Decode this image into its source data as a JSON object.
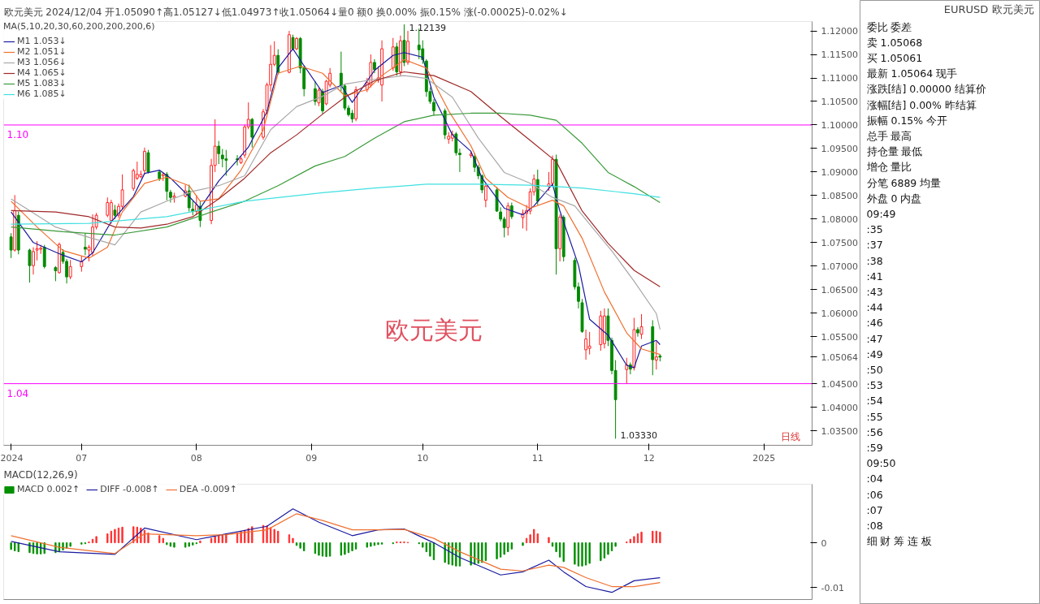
{
  "chart_data": [
    {
      "type": "candlestick",
      "title": "欧元美元 2024/12/04 开1.05090↑高1.05127↓低1.04973↑收1.05064↓量0 额0 换0.00% 振0.15% 涨(-0.00025)-0.02%↓",
      "subtitle": "MA(5,10,20,30,60,200,200,200,6)",
      "x": [
        "2024-06-12",
        "2024-06-13",
        "2024-06-14",
        "2024-06-17",
        "2024-06-18",
        "2024-06-19",
        "2024-06-20",
        "2024-06-21",
        "2024-06-24",
        "2024-06-25",
        "2024-06-26",
        "2024-06-27",
        "2024-06-28",
        "2024-07-01",
        "2024-07-02",
        "2024-07-03",
        "2024-07-04",
        "2024-07-05",
        "2024-07-08",
        "2024-07-09",
        "2024-07-10",
        "2024-07-11",
        "2024-07-12",
        "2024-07-15",
        "2024-07-16",
        "2024-07-17",
        "2024-07-18",
        "2024-07-19",
        "2024-07-22",
        "2024-07-23",
        "2024-07-24",
        "2024-07-25",
        "2024-07-26",
        "2024-07-29",
        "2024-07-30",
        "2024-07-31",
        "2024-08-01",
        "2024-08-02",
        "2024-08-05",
        "2024-08-06",
        "2024-08-07",
        "2024-08-08",
        "2024-08-09",
        "2024-08-12",
        "2024-08-13",
        "2024-08-14",
        "2024-08-15",
        "2024-08-16",
        "2024-08-19",
        "2024-08-20",
        "2024-08-21",
        "2024-08-22",
        "2024-08-23",
        "2024-08-26",
        "2024-08-27",
        "2024-08-28",
        "2024-08-29",
        "2024-08-30",
        "2024-09-02",
        "2024-09-03",
        "2024-09-04",
        "2024-09-05",
        "2024-09-06",
        "2024-09-09",
        "2024-09-10",
        "2024-09-11",
        "2024-09-12",
        "2024-09-13",
        "2024-09-16",
        "2024-09-17",
        "2024-09-18",
        "2024-09-19",
        "2024-09-20",
        "2024-09-23",
        "2024-09-24",
        "2024-09-25",
        "2024-09-26",
        "2024-09-27",
        "2024-09-30",
        "2024-10-01",
        "2024-10-02",
        "2024-10-03",
        "2024-10-04",
        "2024-10-07",
        "2024-10-08",
        "2024-10-09",
        "2024-10-10",
        "2024-10-11",
        "2024-10-14",
        "2024-10-15",
        "2024-10-16",
        "2024-10-17",
        "2024-10-18",
        "2024-10-21",
        "2024-10-22",
        "2024-10-23",
        "2024-10-24",
        "2024-10-25",
        "2024-10-28",
        "2024-10-29",
        "2024-10-30",
        "2024-10-31",
        "2024-11-01",
        "2024-11-04",
        "2024-11-05",
        "2024-11-06",
        "2024-11-07",
        "2024-11-08",
        "2024-11-11",
        "2024-11-12",
        "2024-11-13",
        "2024-11-14",
        "2024-11-15",
        "2024-11-18",
        "2024-11-19",
        "2024-11-20",
        "2024-11-21",
        "2024-11-22",
        "2024-11-25",
        "2024-11-26",
        "2024-11-27",
        "2024-11-28",
        "2024-11-29",
        "2024-12-02",
        "2024-12-03",
        "2024-12-04"
      ],
      "ohlc": [
        [
          1.0762,
          1.077,
          1.0717,
          1.0734
        ],
        [
          1.0734,
          1.0851,
          1.0731,
          1.0818
        ],
        [
          1.0808,
          1.0816,
          1.0725,
          1.0734
        ],
        [
          1.0734,
          1.0737,
          1.0665,
          1.0701
        ],
        [
          1.0701,
          1.074,
          1.0682,
          1.0731
        ],
        [
          1.0734,
          1.0753,
          1.0712,
          1.0737
        ],
        [
          1.0736,
          1.0745,
          1.0726,
          1.0738
        ],
        [
          1.074,
          1.0745,
          1.0695,
          1.0699
        ],
        [
          1.0697,
          1.07,
          1.0668,
          1.069
        ],
        [
          1.0686,
          1.075,
          1.0684,
          1.0746
        ],
        [
          1.0729,
          1.0736,
          1.0705,
          1.071
        ],
        [
          1.071,
          1.0715,
          1.0663,
          1.0677
        ],
        [
          1.0677,
          1.0713,
          1.0672,
          1.0699
        ],
        [
          1.0699,
          1.0721,
          1.0688,
          1.071
        ],
        [
          1.074,
          1.077,
          1.0723,
          1.0736
        ],
        [
          1.0734,
          1.0745,
          1.071,
          1.074
        ],
        [
          1.0729,
          1.081,
          1.0721,
          1.0783
        ],
        [
          1.0783,
          1.0813,
          1.0778,
          1.0808
        ],
        [
          1.0808,
          1.0846,
          1.0804,
          1.0835
        ],
        [
          1.0797,
          1.0841,
          1.079,
          1.0835
        ],
        [
          1.0819,
          1.083,
          1.08,
          1.0808
        ],
        [
          1.0808,
          1.0833,
          1.0803,
          1.0827
        ],
        [
          1.0827,
          1.0895,
          1.082,
          1.0862
        ],
        [
          1.0865,
          1.0907,
          1.086,
          1.0903
        ],
        [
          1.0887,
          1.0922,
          1.0883,
          1.0895
        ],
        [
          1.089,
          1.0903,
          1.0887,
          1.0895
        ],
        [
          1.0903,
          1.0952,
          1.0895,
          1.0944
        ],
        [
          1.0941,
          1.0947,
          1.0897,
          1.09
        ],
        [
          1.09,
          1.0905,
          1.0881,
          1.0886
        ],
        [
          1.0892,
          1.09,
          1.0881,
          1.0895
        ],
        [
          1.0895,
          1.09,
          1.084,
          1.0859
        ],
        [
          1.0857,
          1.0862,
          1.0835,
          1.0846
        ],
        [
          1.0846,
          1.0856,
          1.0835,
          1.0849
        ],
        [
          1.0849,
          1.0873,
          1.0846,
          1.086
        ],
        [
          1.086,
          1.0873,
          1.0816,
          1.0824
        ],
        [
          1.0821,
          1.0838,
          1.0808,
          1.0816
        ],
        [
          1.0816,
          1.0851,
          1.0808,
          1.083
        ],
        [
          1.0827,
          1.0838,
          1.0783,
          1.0797
        ],
        [
          1.0797,
          1.0928,
          1.0789,
          1.0914
        ],
        [
          1.0914,
          1.1012,
          1.09,
          1.0955
        ],
        [
          1.0955,
          1.0966,
          1.0917,
          1.0939
        ],
        [
          1.0936,
          1.0949,
          1.091,
          1.0928
        ],
        [
          1.0928,
          1.0947,
          1.0892,
          1.0925
        ],
        [
          1.0928,
          1.0936,
          1.0914,
          1.0926
        ],
        [
          1.092,
          1.0934,
          1.0917,
          1.0928
        ],
        [
          1.0936,
          1.1001,
          1.093,
          1.0996
        ],
        [
          1.0996,
          1.1048,
          1.0991,
          1.1012
        ],
        [
          1.1012,
          1.1015,
          1.0952,
          1.0974
        ],
        [
          1.0974,
          1.1034,
          1.0969,
          1.1028
        ],
        [
          1.103,
          1.109,
          1.1023,
          1.1085
        ],
        [
          1.1085,
          1.117,
          1.1071,
          1.1129
        ],
        [
          1.1129,
          1.1178,
          1.1125,
          1.1148
        ],
        [
          1.1148,
          1.1161,
          1.1107,
          1.1112
        ],
        [
          1.1112,
          1.12,
          1.111,
          1.1192
        ],
        [
          1.1186,
          1.1192,
          1.1159,
          1.1162
        ],
        [
          1.1162,
          1.1187,
          1.1159,
          1.1184
        ],
        [
          1.1184,
          1.1187,
          1.111,
          1.1121
        ],
        [
          1.1121,
          1.1125,
          1.1061,
          1.1077
        ],
        [
          1.1077,
          1.1093,
          1.1042,
          1.105
        ],
        [
          1.1047,
          1.108,
          1.104,
          1.1074
        ],
        [
          1.1071,
          1.1077,
          1.1023,
          1.103
        ],
        [
          1.1045,
          1.1096,
          1.1042,
          1.1093
        ],
        [
          1.1085,
          1.1121,
          1.108,
          1.111
        ],
        [
          1.111,
          1.1156,
          1.1072,
          1.1083
        ],
        [
          1.1083,
          1.1088,
          1.1031,
          1.1036
        ],
        [
          1.1036,
          1.1042,
          1.1018,
          1.1022
        ],
        [
          1.1025,
          1.1032,
          1.1005,
          1.1013
        ],
        [
          1.1013,
          1.1082,
          1.1008,
          1.1075
        ],
        [
          1.1075,
          1.11,
          1.107,
          1.109
        ],
        [
          1.1085,
          1.115,
          1.108,
          1.1133
        ],
        [
          1.1133,
          1.114,
          1.111,
          1.1118
        ],
        [
          1.1095,
          1.1125,
          1.109,
          1.11
        ],
        [
          1.1085,
          1.118,
          1.105,
          1.1162
        ],
        [
          1.1121,
          1.1185,
          1.1115,
          1.1166
        ],
        [
          1.1166,
          1.1175,
          1.1105,
          1.1113
        ],
        [
          1.1113,
          1.119,
          1.1105,
          1.1179
        ],
        [
          1.118,
          1.12139,
          1.1125,
          1.1133
        ],
        [
          1.1133,
          1.12,
          1.1128,
          1.1178
        ],
        [
          1.117,
          1.1205,
          1.114,
          1.116
        ],
        [
          1.1162,
          1.118,
          1.113,
          1.1139
        ],
        [
          1.1136,
          1.114,
          1.106,
          1.1071
        ],
        [
          1.1071,
          1.108,
          1.1045,
          1.105
        ],
        [
          1.1048,
          1.1055,
          1.102,
          1.103
        ],
        [
          1.103,
          1.1035,
          1.097,
          1.0979
        ],
        [
          1.097,
          1.0985,
          1.096,
          1.0976
        ],
        [
          1.0972,
          1.0988,
          1.0965,
          1.098
        ],
        [
          1.0981,
          1.0985,
          1.0935,
          1.0941
        ],
        [
          1.094,
          1.095,
          1.09,
          1.0937
        ],
        [
          1.0935,
          1.0945,
          1.093,
          1.0938
        ],
        [
          1.0933,
          1.094,
          1.09,
          1.091
        ],
        [
          1.091,
          1.0915,
          1.0885,
          1.0892
        ],
        [
          1.0892,
          1.0895,
          1.0855,
          1.0862
        ],
        [
          1.084,
          1.0875,
          1.0825,
          1.087
        ],
        [
          1.0862,
          1.0868,
          1.0815,
          1.0817
        ],
        [
          1.0815,
          1.0825,
          1.0795,
          1.08
        ],
        [
          1.08,
          1.0805,
          1.0761,
          1.0782
        ],
        [
          1.0782,
          1.0835,
          1.0765,
          1.0828
        ],
        [
          1.0828,
          1.0835,
          1.08,
          1.0805
        ],
        [
          1.0803,
          1.082,
          1.078,
          1.0812
        ],
        [
          1.0812,
          1.083,
          1.0775,
          1.0818
        ],
        [
          1.0817,
          1.0865,
          1.081,
          1.0858
        ],
        [
          1.0858,
          1.0895,
          1.085,
          1.0885
        ],
        [
          1.0884,
          1.0905,
          1.083,
          1.0838
        ],
        [
          1.087,
          1.09,
          1.086,
          1.0875
        ],
        [
          1.0876,
          1.0935,
          1.087,
          1.0927
        ],
        [
          1.0927,
          1.0937,
          1.0682,
          1.0737
        ],
        [
          1.0737,
          1.081,
          1.071,
          1.0804
        ],
        [
          1.0804,
          1.0808,
          1.071,
          1.072
        ],
        [
          1.0712,
          1.0718,
          1.065,
          1.0656
        ],
        [
          1.0656,
          1.0665,
          1.061,
          1.0625
        ],
        [
          1.0622,
          1.063,
          1.0558,
          1.0561
        ],
        [
          1.0522,
          1.0565,
          1.0501,
          1.0545
        ],
        [
          1.0525,
          1.056,
          1.0512,
          1.053
        ],
        [
          1.0533,
          1.0605,
          1.052,
          1.0594
        ],
        [
          1.0535,
          1.061,
          1.0525,
          1.0594
        ],
        [
          1.0594,
          1.061,
          1.053,
          1.0542
        ],
        [
          1.0542,
          1.0548,
          1.047,
          1.0478
        ],
        [
          1.0478,
          1.05,
          1.0333,
          1.0416
        ],
        [
          1.048,
          1.0505,
          1.045,
          1.049
        ],
        [
          1.049,
          1.0495,
          1.047,
          1.0481
        ],
        [
          1.0484,
          1.059,
          1.0478,
          1.0565
        ],
        [
          1.0565,
          1.057,
          1.055,
          1.0558
        ],
        [
          1.0555,
          1.0598,
          1.0545,
          1.0571
        ],
        [
          1.0571,
          1.0585,
          1.0468,
          1.0501
        ],
        [
          1.05,
          1.054,
          1.048,
          1.0507
        ],
        [
          1.0509,
          1.05127,
          1.04973,
          1.05064
        ]
      ],
      "series": [
        {
          "type": "line",
          "name": "M1 1.053↓",
          "color": "#1a1aa0",
          "x": [
            "2024-06-12",
            "2024-06-18",
            "2024-06-26",
            "2024-07-01",
            "2024-07-04",
            "2024-07-09",
            "2024-07-15",
            "2024-07-18",
            "2024-07-22",
            "2024-07-25",
            "2024-07-30",
            "2024-08-02",
            "2024-08-07",
            "2024-08-12",
            "2024-08-15",
            "2024-08-20",
            "2024-08-23",
            "2024-08-27",
            "2024-08-30",
            "2024-09-04",
            "2024-09-09",
            "2024-09-12",
            "2024-09-18",
            "2024-09-23",
            "2024-09-26",
            "2024-10-01",
            "2024-10-04",
            "2024-10-09",
            "2024-10-14",
            "2024-10-17",
            "2024-10-23",
            "2024-10-28",
            "2024-10-31",
            "2024-11-05",
            "2024-11-07",
            "2024-11-12",
            "2024-11-15",
            "2024-11-20",
            "2024-11-25",
            "2024-11-27",
            "2024-11-29",
            "2024-12-03",
            "2024-12-04"
          ],
          "values": [
            1.0815,
            1.075,
            1.0723,
            1.0709,
            1.0728,
            1.0794,
            1.0848,
            1.0897,
            1.0904,
            1.0887,
            1.0848,
            1.0823,
            1.0881,
            1.0925,
            1.0953,
            1.1028,
            1.1121,
            1.1162,
            1.1126,
            1.1069,
            1.1084,
            1.1048,
            1.1116,
            1.1148,
            1.1154,
            1.1144,
            1.1059,
            1.0979,
            1.0944,
            1.0887,
            1.0823,
            1.0809,
            1.0828,
            1.0874,
            1.0817,
            1.0702,
            1.0587,
            1.0553,
            1.0489,
            1.0484,
            1.053,
            1.0542,
            1.0533
          ]
        },
        {
          "type": "line",
          "name": "M2 1.051↓",
          "color": "#f07030",
          "x": [
            "2024-06-12",
            "2024-06-19",
            "2024-06-26",
            "2024-07-03",
            "2024-07-08",
            "2024-07-12",
            "2024-07-18",
            "2024-07-24",
            "2024-07-30",
            "2024-08-02",
            "2024-08-07",
            "2024-08-13",
            "2024-08-19",
            "2024-08-23",
            "2024-08-29",
            "2024-09-04",
            "2024-09-10",
            "2024-09-16",
            "2024-09-20",
            "2024-09-26",
            "2024-10-02",
            "2024-10-08",
            "2024-10-14",
            "2024-10-18",
            "2024-10-24",
            "2024-10-30",
            "2024-11-05",
            "2024-11-08",
            "2024-11-13",
            "2024-11-19",
            "2024-11-25",
            "2024-11-29",
            "2024-12-04"
          ],
          "values": [
            1.0838,
            1.0783,
            1.0733,
            1.0717,
            1.074,
            1.0815,
            1.0876,
            1.0889,
            1.0871,
            1.0838,
            1.0843,
            1.0904,
            1.099,
            1.111,
            1.1125,
            1.111,
            1.1062,
            1.1075,
            1.1105,
            1.1139,
            1.1121,
            1.103,
            1.0956,
            1.0887,
            1.0846,
            1.0823,
            1.084,
            1.0828,
            1.0759,
            1.0645,
            1.0558,
            1.0524,
            1.0512
          ]
        },
        {
          "type": "line",
          "name": "M3 1.056↓",
          "color": "#a8a8a8",
          "x": [
            "2024-06-12",
            "2024-06-24",
            "2024-07-03",
            "2024-07-10",
            "2024-07-17",
            "2024-07-24",
            "2024-07-31",
            "2024-08-07",
            "2024-08-14",
            "2024-08-21",
            "2024-08-28",
            "2024-09-04",
            "2024-09-10",
            "2024-09-18",
            "2024-09-26",
            "2024-10-02",
            "2024-10-09",
            "2024-10-16",
            "2024-10-23",
            "2024-10-30",
            "2024-11-05",
            "2024-11-11",
            "2024-11-15",
            "2024-11-21",
            "2024-11-27",
            "2024-12-03",
            "2024-12-04"
          ],
          "values": [
            1.0843,
            1.0783,
            1.0761,
            1.0745,
            1.0815,
            1.0838,
            1.0859,
            1.0871,
            1.0892,
            1.099,
            1.1039,
            1.1061,
            1.1087,
            1.1097,
            1.1105,
            1.1099,
            1.1059,
            1.0972,
            1.0899,
            1.0876,
            1.0846,
            1.0828,
            1.0789,
            1.0732,
            1.0668,
            1.0599,
            1.0565
          ]
        },
        {
          "type": "line",
          "name": "M4 1.065↓",
          "color": "#a02828",
          "x": [
            "2024-06-12",
            "2024-06-24",
            "2024-07-03",
            "2024-07-10",
            "2024-07-17",
            "2024-07-24",
            "2024-07-31",
            "2024-08-07",
            "2024-08-14",
            "2024-08-21",
            "2024-08-28",
            "2024-09-04",
            "2024-09-10",
            "2024-09-18",
            "2024-09-26",
            "2024-10-04",
            "2024-10-14",
            "2024-10-22",
            "2024-10-30",
            "2024-11-06",
            "2024-11-13",
            "2024-11-20",
            "2024-11-27",
            "2024-12-04"
          ],
          "values": [
            1.0818,
            1.0815,
            1.0805,
            1.0783,
            1.0781,
            1.0789,
            1.0805,
            1.0843,
            1.0887,
            1.0941,
            1.0979,
            1.1023,
            1.1059,
            1.1094,
            1.1113,
            1.1105,
            1.1071,
            1.1018,
            1.0967,
            1.0922,
            1.0817,
            1.0748,
            1.0691,
            1.0656
          ]
        },
        {
          "type": "line",
          "name": "M5 1.083↓",
          "color": "#3a9a3a",
          "x": [
            "2024-06-12",
            "2024-06-26",
            "2024-07-10",
            "2024-07-24",
            "2024-08-05",
            "2024-08-14",
            "2024-08-23",
            "2024-09-02",
            "2024-09-10",
            "2024-09-18",
            "2024-09-26",
            "2024-10-04",
            "2024-10-14",
            "2024-10-22",
            "2024-10-30",
            "2024-11-06",
            "2024-11-13",
            "2024-11-20",
            "2024-11-27",
            "2024-12-04"
          ],
          "values": [
            1.0783,
            1.0773,
            1.0766,
            1.0783,
            1.0815,
            1.0838,
            1.0871,
            1.0913,
            1.0933,
            1.0972,
            1.1007,
            1.1021,
            1.1025,
            1.1025,
            1.1021,
            1.101,
            1.0961,
            1.0899,
            1.0869,
            1.0835
          ]
        },
        {
          "type": "line",
          "name": "M6 1.085↓",
          "color": "#40e0e0",
          "x": [
            "2024-06-12",
            "2024-07-03",
            "2024-07-24",
            "2024-08-14",
            "2024-09-04",
            "2024-09-18",
            "2024-10-02",
            "2024-10-16",
            "2024-10-30",
            "2024-11-13",
            "2024-11-27",
            "2024-12-04"
          ],
          "values": [
            1.0789,
            1.0791,
            1.0805,
            1.0838,
            1.0856,
            1.0866,
            1.0874,
            1.0874,
            1.0872,
            1.0866,
            1.0854,
            1.0846
          ]
        }
      ],
      "xlim": [
        "2024-06-10",
        "2025-01-14"
      ],
      "xticks": [
        {
          "value": "2024-06-12",
          "label": "2024"
        },
        {
          "value": "2024-07-01",
          "label": "07"
        },
        {
          "value": "2024-08-01",
          "label": "08"
        },
        {
          "value": "2024-09-01",
          "label": "09"
        },
        {
          "value": "2024-10-01",
          "label": "10"
        },
        {
          "value": "2024-11-01",
          "label": "11"
        },
        {
          "value": "2024-12-01",
          "label": "12"
        },
        {
          "value": "2025-01-01",
          "label": "2025"
        }
      ],
      "ylim": [
        1.0319,
        1.122
      ],
      "yticks": [
        {
          "value": 1.035,
          "label": "1.03500"
        },
        {
          "value": 1.04,
          "label": "1.04000"
        },
        {
          "value": 1.045,
          "label": "1.04500"
        },
        {
          "value": 1.05064,
          "label": "1.05064"
        },
        {
          "value": 1.055,
          "label": "1.05500"
        },
        {
          "value": 1.06,
          "label": "1.06000"
        },
        {
          "value": 1.065,
          "label": "1.06500"
        },
        {
          "value": 1.07,
          "label": "1.07000"
        },
        {
          "value": 1.075,
          "label": "1.07500"
        },
        {
          "value": 1.08,
          "label": "1.08000"
        },
        {
          "value": 1.085,
          "label": "1.08500"
        },
        {
          "value": 1.09,
          "label": "1.09000"
        },
        {
          "value": 1.095,
          "label": "1.09500"
        },
        {
          "value": 1.1,
          "label": "1.10000"
        },
        {
          "value": 1.105,
          "label": "1.10500"
        },
        {
          "value": 1.11,
          "label": "1.11000"
        },
        {
          "value": 1.115,
          "label": "1.11500"
        },
        {
          "value": 1.12,
          "label": "1.12000"
        }
      ],
      "ref_lines": [
        {
          "axis": "y",
          "value": 1.1,
          "label": "1.10",
          "color": "#ff00ff"
        },
        {
          "axis": "y",
          "value": 1.045,
          "label": "1.04",
          "color": "#ff00ff"
        }
      ],
      "annotations": [
        "欧元美元",
        "日线",
        {
          "text": "1.12139",
          "x": "2024-09-26",
          "y": 1.12139
        },
        {
          "text": "1.03330",
          "x": "2024-11-22",
          "y": 1.0333
        }
      ],
      "legend": "top left",
      "grid": false
    },
    {
      "type": "bar",
      "title": "MACD(12,26,9)",
      "x": [
        "2024-06-12",
        "2024-06-13",
        "2024-06-14",
        "2024-06-17",
        "2024-06-18",
        "2024-06-19",
        "2024-06-20",
        "2024-06-21",
        "2024-06-24",
        "2024-06-25",
        "2024-06-26",
        "2024-06-27",
        "2024-06-28",
        "2024-07-01",
        "2024-07-02",
        "2024-07-03",
        "2024-07-04",
        "2024-07-05",
        "2024-07-08",
        "2024-07-09",
        "2024-07-10",
        "2024-07-11",
        "2024-07-12",
        "2024-07-15",
        "2024-07-16",
        "2024-07-17",
        "2024-07-18",
        "2024-07-19",
        "2024-07-22",
        "2024-07-23",
        "2024-07-24",
        "2024-07-25",
        "2024-07-26",
        "2024-07-29",
        "2024-07-30",
        "2024-07-31",
        "2024-08-01",
        "2024-08-02",
        "2024-08-05",
        "2024-08-06",
        "2024-08-07",
        "2024-08-08",
        "2024-08-09",
        "2024-08-12",
        "2024-08-13",
        "2024-08-14",
        "2024-08-15",
        "2024-08-16",
        "2024-08-19",
        "2024-08-20",
        "2024-08-21",
        "2024-08-22",
        "2024-08-23",
        "2024-08-26",
        "2024-08-27",
        "2024-08-28",
        "2024-08-29",
        "2024-08-30",
        "2024-09-02",
        "2024-09-03",
        "2024-09-04",
        "2024-09-05",
        "2024-09-06",
        "2024-09-09",
        "2024-09-10",
        "2024-09-11",
        "2024-09-12",
        "2024-09-13",
        "2024-09-16",
        "2024-09-17",
        "2024-09-18",
        "2024-09-19",
        "2024-09-20",
        "2024-09-23",
        "2024-09-24",
        "2024-09-25",
        "2024-09-26",
        "2024-09-27",
        "2024-09-30",
        "2024-10-01",
        "2024-10-02",
        "2024-10-03",
        "2024-10-04",
        "2024-10-07",
        "2024-10-08",
        "2024-10-09",
        "2024-10-10",
        "2024-10-11",
        "2024-10-14",
        "2024-10-15",
        "2024-10-16",
        "2024-10-17",
        "2024-10-18",
        "2024-10-21",
        "2024-10-22",
        "2024-10-23",
        "2024-10-24",
        "2024-10-25",
        "2024-10-28",
        "2024-10-29",
        "2024-10-30",
        "2024-10-31",
        "2024-11-01",
        "2024-11-04",
        "2024-11-05",
        "2024-11-06",
        "2024-11-07",
        "2024-11-08",
        "2024-11-11",
        "2024-11-12",
        "2024-11-13",
        "2024-11-14",
        "2024-11-15",
        "2024-11-18",
        "2024-11-19",
        "2024-11-20",
        "2024-11-21",
        "2024-11-22",
        "2024-11-25",
        "2024-11-26",
        "2024-11-27",
        "2024-11-28",
        "2024-11-29",
        "2024-12-02",
        "2024-12-03",
        "2024-12-04"
      ],
      "series": [
        {
          "type": "bar",
          "name": "MACD 0.002↑",
          "values": [
            -0.0015,
            -0.0018,
            -0.002,
            -0.0022,
            -0.0024,
            -0.0025,
            -0.0025,
            -0.0024,
            -0.0022,
            -0.002,
            -0.0016,
            -0.0012,
            -0.0008,
            -0.0003,
            -0.0002,
            0.0002,
            0.0008,
            0.0014,
            0.002,
            0.0026,
            0.003,
            0.0033,
            0.0035,
            0.0036,
            0.0035,
            0.0033,
            0.0028,
            0.0022,
            0.0016,
            0.001,
            -0.0004,
            -0.0008,
            -0.001,
            -0.001,
            -0.0008,
            -0.0005,
            -0.0002,
            0.0004,
            0.001,
            0.0014,
            0.0016,
            0.0018,
            0.002,
            0.0022,
            0.0025,
            0.0028,
            0.0032,
            0.0036,
            0.0039,
            0.0038,
            0.0034,
            0.003,
            0.0026,
            0.0018,
            0.001,
            -0.0006,
            -0.0012,
            -0.0018,
            -0.0024,
            -0.0028,
            -0.003,
            -0.0031,
            -0.003,
            -0.0028,
            -0.0026,
            -0.0022,
            -0.0018,
            -0.0014,
            -0.001,
            -0.0008,
            -0.0006,
            -0.0004,
            -0.0003,
            -0.0002,
            0.0002,
            0.0002,
            0.0002,
            0.0001,
            -0.0002,
            -0.001,
            -0.002,
            -0.003,
            -0.0038,
            -0.0044,
            -0.0048,
            -0.005,
            -0.0052,
            -0.0052,
            -0.005,
            -0.0048,
            -0.0046,
            -0.0044,
            -0.004,
            -0.0036,
            -0.0032,
            -0.0026,
            -0.002,
            -0.0014,
            -0.0006,
            0.001,
            0.0018,
            0.003,
            0.002,
            0.0012,
            -0.0008,
            -0.002,
            -0.0032,
            -0.0042,
            -0.0048,
            -0.0052,
            -0.0052,
            -0.005,
            -0.0046,
            -0.004,
            -0.0034,
            -0.0026,
            -0.0018,
            -0.0008,
            0.0002,
            0.0008,
            0.0014,
            0.002,
            0.0024,
            0.0026,
            0.0026,
            0.0024
          ],
          "colors": [
            "#009000",
            "#009000",
            "#009000",
            "#009000",
            "#009000",
            "#009000",
            "#009000",
            "#009000",
            "#009000",
            "#009000",
            "#009000",
            "#009000",
            "#009000",
            "#009000",
            "#009000",
            "#ff3030",
            "#ff3030",
            "#ff3030",
            "#ff3030",
            "#ff3030",
            "#ff3030",
            "#ff3030",
            "#ff3030",
            "#ff3030",
            "#ff3030",
            "#ff3030",
            "#ff3030",
            "#ff3030",
            "#ff3030",
            "#ff3030",
            "#009000",
            "#009000",
            "#009000",
            "#009000",
            "#009000",
            "#009000",
            "#009000",
            "#ff3030",
            "#ff3030",
            "#ff3030",
            "#ff3030",
            "#ff3030",
            "#ff3030",
            "#ff3030",
            "#ff3030",
            "#ff3030",
            "#ff3030",
            "#ff3030",
            "#ff3030",
            "#ff3030",
            "#ff3030",
            "#ff3030",
            "#ff3030",
            "#ff3030",
            "#ff3030",
            "#009000",
            "#009000",
            "#009000",
            "#009000",
            "#009000",
            "#009000",
            "#009000",
            "#009000",
            "#009000",
            "#009000",
            "#009000",
            "#009000",
            "#009000",
            "#009000",
            "#009000",
            "#009000",
            "#009000",
            "#009000",
            "#009000",
            "#ff3030",
            "#ff3030",
            "#ff3030",
            "#ff3030",
            "#009000",
            "#009000",
            "#009000",
            "#009000",
            "#009000",
            "#009000",
            "#009000",
            "#009000",
            "#009000",
            "#009000",
            "#009000",
            "#009000",
            "#009000",
            "#009000",
            "#009000",
            "#009000",
            "#009000",
            "#009000",
            "#009000",
            "#009000",
            "#009000",
            "#ff3030",
            "#ff3030",
            "#ff3030",
            "#ff3030",
            "#ff3030",
            "#009000",
            "#009000",
            "#009000",
            "#009000",
            "#009000",
            "#009000",
            "#009000",
            "#009000",
            "#009000",
            "#009000",
            "#009000",
            "#009000",
            "#009000",
            "#009000",
            "#ff3030",
            "#ff3030",
            "#ff3030",
            "#ff3030",
            "#ff3030",
            "#ff3030",
            "#ff3030",
            "#ff3030"
          ]
        },
        {
          "type": "line",
          "name": "DIFF -0.008↑",
          "color": "#1a1aa0",
          "x": [
            "2024-06-12",
            "2024-06-25",
            "2024-07-10",
            "2024-07-18",
            "2024-08-01",
            "2024-08-09",
            "2024-08-20",
            "2024-08-27",
            "2024-09-03",
            "2024-09-12",
            "2024-09-19",
            "2024-09-26",
            "2024-10-04",
            "2024-10-11",
            "2024-10-22",
            "2024-10-28",
            "2024-11-04",
            "2024-11-08",
            "2024-11-14",
            "2024-11-21",
            "2024-11-27",
            "2024-12-02",
            "2024-12-04"
          ],
          "values": [
            0.0003,
            -0.002,
            -0.0026,
            0.0033,
            0.0007,
            0.002,
            0.0037,
            0.0076,
            0.0046,
            0.0016,
            0.0029,
            0.0031,
            0.0,
            -0.0033,
            -0.0072,
            -0.0065,
            -0.0039,
            -0.0065,
            -0.0098,
            -0.0111,
            -0.0085,
            -0.008,
            -0.0078
          ]
        },
        {
          "type": "line",
          "name": "DEA -0.009↑",
          "color": "#f07030",
          "x": [
            "2024-06-12",
            "2024-06-25",
            "2024-07-10",
            "2024-07-18",
            "2024-08-01",
            "2024-08-09",
            "2024-08-20",
            "2024-08-28",
            "2024-09-04",
            "2024-09-12",
            "2024-09-19",
            "2024-09-26",
            "2024-10-04",
            "2024-10-11",
            "2024-10-22",
            "2024-10-28",
            "2024-11-04",
            "2024-11-08",
            "2024-11-14",
            "2024-11-21",
            "2024-11-27",
            "2024-12-04"
          ],
          "values": [
            0.0016,
            -0.001,
            -0.0024,
            0.002,
            0.0016,
            0.0018,
            0.0029,
            0.0065,
            0.005,
            0.0029,
            0.0029,
            0.003,
            0.001,
            -0.002,
            -0.0059,
            -0.0063,
            -0.005,
            -0.0055,
            -0.0078,
            -0.0098,
            -0.0098,
            -0.0089
          ]
        }
      ],
      "xlim": [
        "2024-06-10",
        "2025-01-14"
      ],
      "ylim": [
        -0.0127,
        0.0131
      ],
      "yticks": [
        0,
        -0.01
      ],
      "tick_labels": "y",
      "legend": "top",
      "grid": false
    },
    {
      "type": "other",
      "title": "EURUSD 欧元美元",
      "annotations": [
        "委比  委差",
        "卖  1.05068",
        "买  1.05061",
        "最新  1.05064  现手",
        "涨跌[结]  0.00000  结算价",
        "涨幅[结]  0.00%  昨结算",
        "振幅  0.15%  今开",
        "总手  最高",
        "持仓量  最低",
        "增仓  量比",
        "分笔  6889  均量",
        "外盘  0  内盘",
        "09:49",
        ":35",
        ":37",
        ":38",
        ":41",
        ":43",
        ":44",
        ":46",
        ":47",
        ":49",
        ":50",
        ":53",
        ":54",
        ":55",
        ":56",
        ":59",
        "09:50",
        ":04",
        ":06",
        ":07",
        ":08",
        "细  财  筹  连  板"
      ]
    }
  ]
}
